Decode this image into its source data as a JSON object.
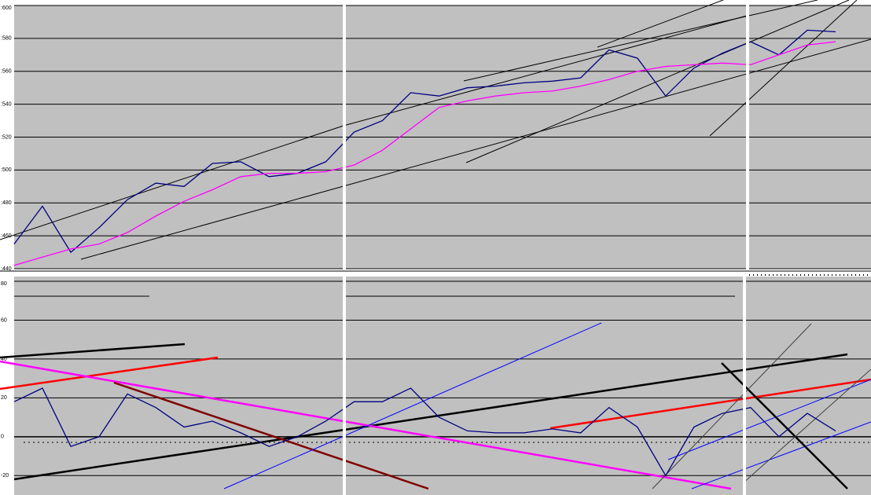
{
  "chart_data": [
    {
      "type": "line",
      "ylim": [
        440,
        600
      ],
      "yticks": [
        {
          "value": 600,
          "label": ":600"
        },
        {
          "value": 580,
          "label": ":580"
        },
        {
          "value": 560,
          "label": ":560"
        },
        {
          "value": 540,
          "label": ":540"
        },
        {
          "value": 520,
          "label": ":520"
        },
        {
          "value": 500,
          "label": ":500"
        },
        {
          "value": 480,
          "label": ":480"
        },
        {
          "value": 460,
          "label": ":460"
        },
        {
          "value": 440,
          "label": ":440"
        }
      ],
      "grid": true,
      "series": [
        {
          "color": "#000080",
          "values": [
            455,
            478,
            450,
            465,
            482,
            492,
            490,
            504,
            505,
            496,
            498,
            505,
            523,
            530,
            547,
            545,
            550,
            551,
            553,
            554,
            556,
            573,
            568,
            545,
            562,
            571,
            578,
            570,
            585,
            584
          ]
        },
        {
          "color": "#ff00ff",
          "values": [
            442,
            447,
            452,
            455,
            462,
            472,
            481,
            488,
            496,
            498,
            498,
            499,
            503,
            512,
            525,
            538,
            542,
            545,
            547,
            548,
            551,
            555,
            560,
            563,
            564,
            565,
            564,
            570,
            576,
            578
          ]
        }
      ]
    },
    {
      "type": "line",
      "ylim": [
        -30,
        80
      ],
      "yticks": [
        80,
        60,
        40,
        20,
        0,
        -20
      ],
      "grid": true,
      "series": [
        {
          "color": "#000080",
          "values": [
            18,
            25,
            -5,
            0,
            22,
            15,
            5,
            8,
            2,
            -5,
            0,
            8,
            18,
            18,
            25,
            10,
            3,
            2,
            2,
            4,
            2,
            15,
            5,
            -20,
            5,
            12,
            15,
            0,
            12,
            3
          ]
        }
      ]
    }
  ]
}
